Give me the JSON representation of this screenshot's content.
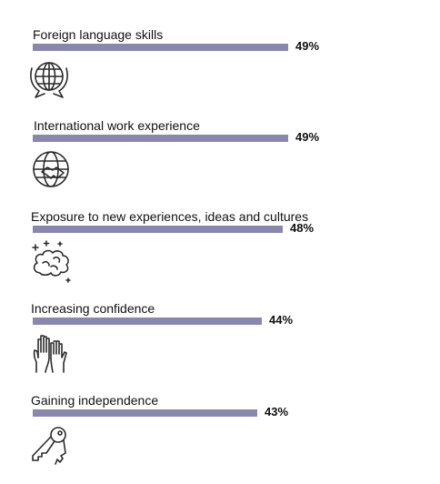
{
  "chart_data": {
    "type": "bar",
    "orientation": "horizontal",
    "categories": [
      "Foreign language skills",
      "International work experience",
      "Exposure to new experiences, ideas and cultures",
      "Increasing confidence",
      "Gaining independence"
    ],
    "values": [
      49,
      49,
      48,
      44,
      43
    ],
    "value_labels": [
      "49%",
      "49%",
      "48%",
      "44%",
      "43%"
    ],
    "unit": "%",
    "bar_color": "#8a87ae",
    "icons": [
      "globe-speech-icon",
      "globe-handshake-icon",
      "brain-sparkles-icon",
      "raised-hands-icon",
      "keys-icon"
    ]
  }
}
